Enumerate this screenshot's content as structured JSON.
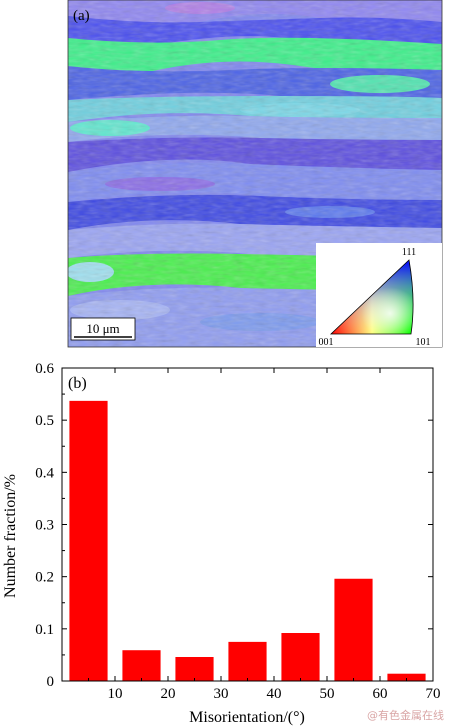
{
  "panel_a": {
    "label": "(a)",
    "scale_bar": "10 μm",
    "ipf_key": {
      "top": "111",
      "left": "001",
      "right": "101"
    }
  },
  "panel_b": {
    "label": "(b)"
  },
  "chart_data": {
    "type": "bar",
    "x": [
      5,
      15,
      25,
      35,
      45,
      55,
      65
    ],
    "values": [
      0.537,
      0.059,
      0.046,
      0.075,
      0.092,
      0.196,
      0.014
    ],
    "bar_color": "#ff0000",
    "xlabel": "Misorientation/(°)",
    "ylabel": "Number fraction/%",
    "xlim": [
      0,
      70
    ],
    "ylim": [
      0,
      0.6
    ],
    "xticks": [
      "10",
      "20",
      "30",
      "40",
      "50",
      "60",
      "70"
    ],
    "yticks": [
      "0",
      "0.1",
      "0.2",
      "0.3",
      "0.4",
      "0.5",
      "0.6"
    ],
    "grid": false
  },
  "watermark": "@有色金属在线"
}
